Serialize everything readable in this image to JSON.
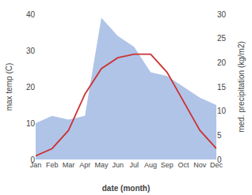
{
  "chart_data": {
    "type": "line",
    "categories": [
      "Jan",
      "Feb",
      "Mar",
      "Apr",
      "May",
      "Jun",
      "Jul",
      "Aug",
      "Sep",
      "Oct",
      "Nov",
      "Dec"
    ],
    "series": [
      {
        "type": "area",
        "color": "#b0c4e8",
        "values": [
          10,
          12,
          11,
          12,
          39,
          34,
          31,
          24,
          23,
          20,
          17,
          15
        ]
      },
      {
        "type": "line",
        "color": "#cc3333",
        "values": [
          1,
          3,
          8,
          18,
          25,
          28,
          29,
          29,
          24,
          16,
          8,
          3
        ]
      }
    ],
    "xlabel": "date (month)",
    "ylabel": "max temp (C)",
    "y2label": "med. precipitation (kg/m2)",
    "ylim": [
      0,
      40
    ],
    "yticks": [
      0,
      10,
      20,
      30,
      40
    ],
    "y2lim": [
      0,
      30
    ],
    "y2ticks": [
      0,
      5,
      10,
      15,
      20,
      25,
      30
    ],
    "grid": false
  }
}
